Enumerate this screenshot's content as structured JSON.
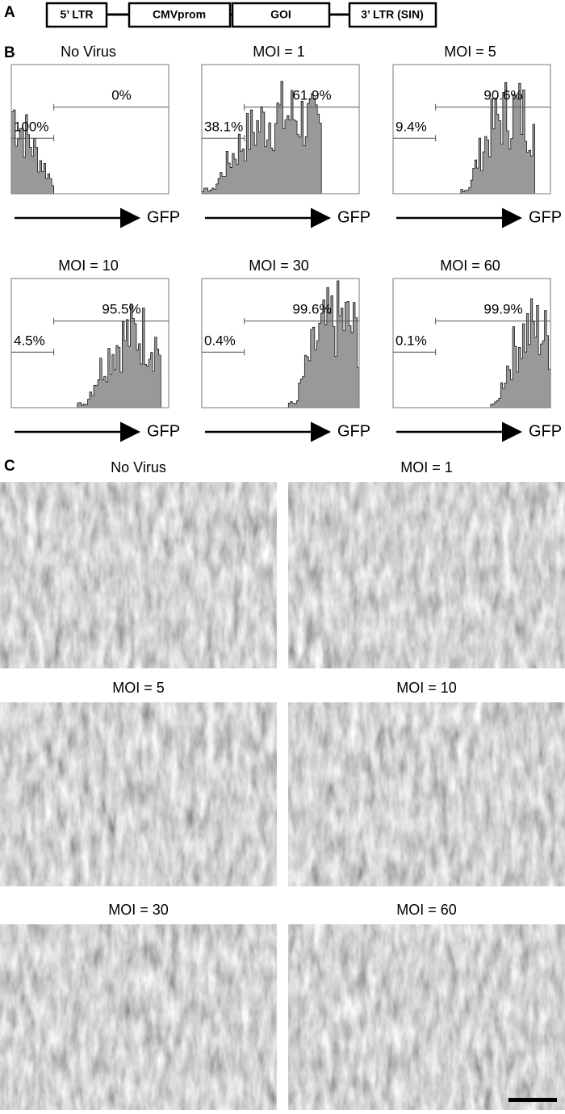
{
  "panel_a": {
    "label": "A",
    "boxes": [
      "5’ LTR",
      "CMVprom",
      "GOI",
      "3’ LTR (SIN)"
    ]
  },
  "panel_b": {
    "label": "B",
    "axis_label": "GFP",
    "plots": [
      {
        "title": "No Virus",
        "left_gate": "100%",
        "right_gate": "0%"
      },
      {
        "title": "MOI = 1",
        "left_gate": "38.1%",
        "right_gate": "61.9%"
      },
      {
        "title": "MOI = 5",
        "left_gate": "9.4%",
        "right_gate": "90.6%"
      },
      {
        "title": "MOI = 10",
        "left_gate": "4.5%",
        "right_gate": "95.5%"
      },
      {
        "title": "MOI = 30",
        "left_gate": "0.4%",
        "right_gate": "99.6%"
      },
      {
        "title": "MOI = 60",
        "left_gate": "0.1%",
        "right_gate": "99.9%"
      }
    ]
  },
  "panel_c": {
    "label": "C",
    "images": [
      {
        "title": "No Virus"
      },
      {
        "title": "MOI = 1"
      },
      {
        "title": "MOI = 5"
      },
      {
        "title": "MOI = 10"
      },
      {
        "title": "MOI = 30"
      },
      {
        "title": "MOI = 60"
      }
    ]
  }
}
